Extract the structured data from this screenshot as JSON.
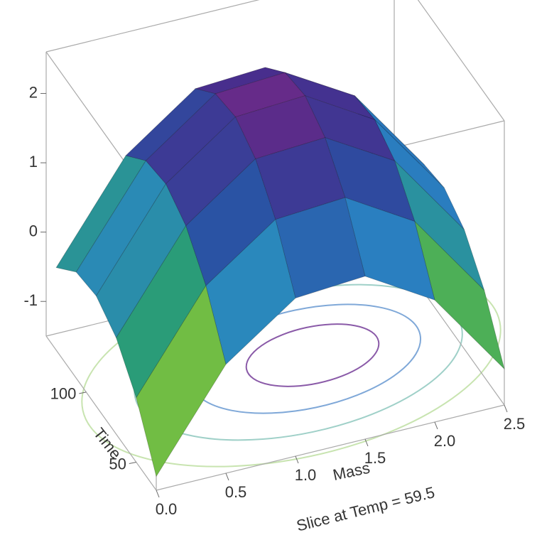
{
  "chart_data": {
    "type": "surface",
    "subtitle": "Slice at Temp = 59.5",
    "x_label": "Mass",
    "y_label": "Time",
    "x": [
      0,
      0.5,
      1,
      1.5,
      2,
      2.5
    ],
    "y": [
      30,
      50,
      70,
      90,
      110,
      130
    ],
    "z": [
      [
        -1.3,
        0.07,
        0.78,
        0.85,
        0.26,
        -0.98
      ],
      [
        -0.57,
        0.8,
        1.51,
        1.58,
        0.99,
        -0.25
      ],
      [
        -0.11,
        1.26,
        1.98,
        2.04,
        1.46,
        0.22
      ],
      [
        0.09,
        1.46,
        2.18,
        2.24,
        1.65,
        0.42
      ],
      [
        0.03,
        1.39,
        2.11,
        2.17,
        1.59,
        0.35
      ],
      [
        -0.31,
        1.06,
        1.78,
        1.84,
        1.26,
        0.02
      ]
    ],
    "xlim": [
      0,
      2.5
    ],
    "ylim": [
      30,
      140
    ],
    "zlim": [
      -1.5,
      2.6
    ],
    "xticks": [
      {
        "value": 0,
        "label": "0.0"
      },
      0.5,
      {
        "value": 1,
        "label": "1.0"
      },
      1.5,
      {
        "value": 2,
        "label": "2.0"
      },
      2.5
    ],
    "yticks": [
      50,
      100
    ],
    "zticks": [
      -1,
      0,
      1,
      2
    ],
    "colormap": [
      "#e8501a",
      "#e8e02a",
      "#7cc23e",
      "#2aa06a",
      "#2a86c4",
      "#2a4fa2",
      "#4a2c8c",
      "#b02a80"
    ]
  }
}
